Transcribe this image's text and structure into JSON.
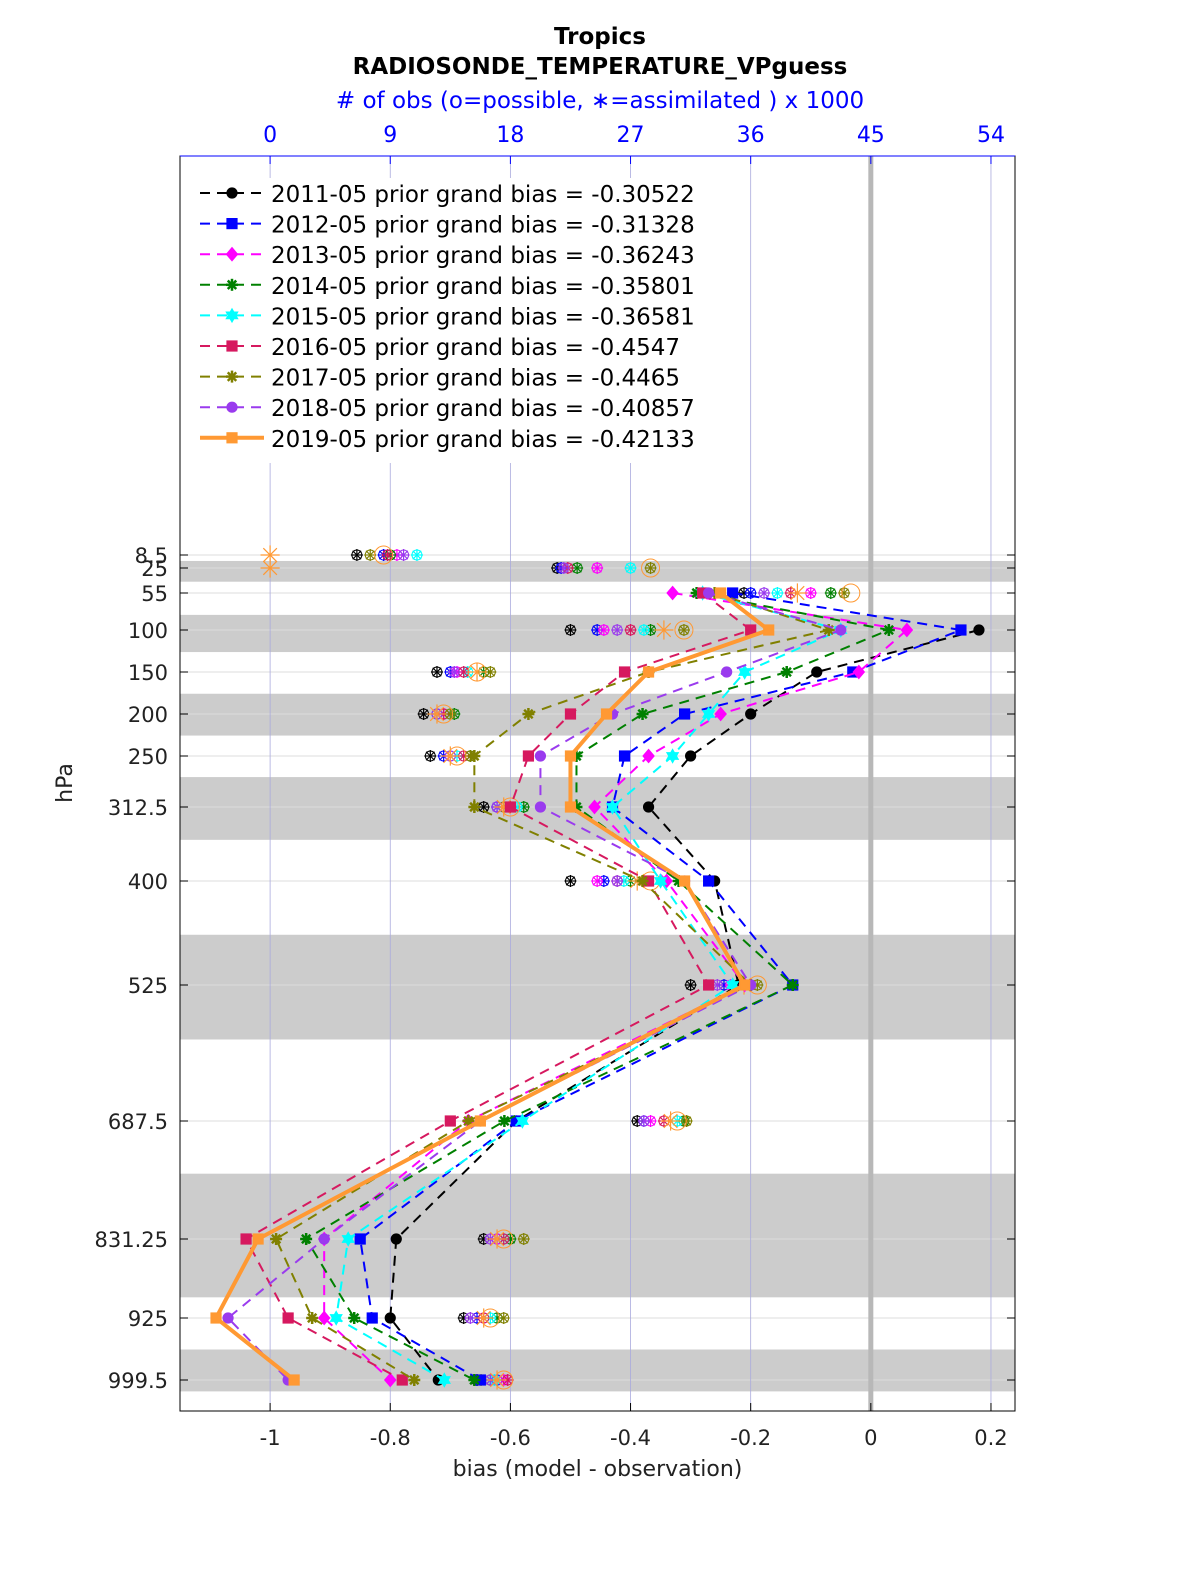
{
  "title": "Tropics",
  "subtitle": "RADIOSONDE_TEMPERATURE_VPguess",
  "top_axis_label": "# of obs (o=possible, ∗=assimilated ) x 1000",
  "colors": {
    "2011-05": "#000000",
    "2012-05": "#0000ff",
    "2013-05": "#ff00ff",
    "2014-05": "#008000",
    "2015-05": "#00ffff",
    "2016-05": "#d6195f",
    "2017-05": "#808000",
    "2018-05": "#9a3bee",
    "2019-05": "#ff9933"
  },
  "chart_data": {
    "type": "line",
    "title": "Tropics",
    "subtitle": "RADIOSONDE_TEMPERATURE_VPguess",
    "xlabel": "bias (model - observation)",
    "ylabel": "hPa",
    "xlim": [
      -1.15,
      0.24
    ],
    "x_ticks": [
      -1,
      -0.8,
      -0.6,
      -0.4,
      -0.2,
      0,
      0.2
    ],
    "x_tick_labels": [
      "-1",
      "-0.8",
      "-0.6",
      "-0.4",
      "-0.2",
      "0",
      "0.2"
    ],
    "top_axis": {
      "label": "# of obs (o=possible, ∗=assimilated ) x 1000",
      "ticks": [
        0,
        9,
        18,
        27,
        36,
        45,
        54
      ],
      "tick_labels": [
        "0",
        "9",
        "18",
        "27",
        "36",
        "45",
        "54"
      ]
    },
    "y_reversed": true,
    "y_levels": [
      8.5,
      25,
      55,
      100,
      150,
      200,
      250,
      312.5,
      400,
      525,
      687.5,
      831.25,
      925,
      999.5
    ],
    "y_tick_labels": [
      "8.5",
      "25",
      "55",
      "100",
      "150",
      "200",
      "250",
      "312.5",
      "400",
      "525",
      "687.5",
      "831.25",
      "925",
      "999.5"
    ],
    "grid": true,
    "legend_position": "top-left",
    "series": [
      {
        "name": "2011-05 prior grand bias = -0.30522",
        "line": "dashed",
        "marker": "circle",
        "levels": [
          100,
          150,
          200,
          250,
          312.5,
          400,
          525,
          687.5,
          831.25,
          925,
          999.5
        ],
        "values": [
          0.18,
          -0.09,
          -0.2,
          -0.3,
          -0.37,
          -0.26,
          -0.22,
          -0.59,
          -0.79,
          -0.8,
          -0.72
        ]
      },
      {
        "name": "2012-05 prior grand bias = -0.31328",
        "line": "dashed",
        "marker": "square",
        "levels": [
          55,
          100,
          150,
          200,
          250,
          312.5,
          400,
          525,
          687.5,
          831.25,
          925,
          999.5
        ],
        "values": [
          -0.23,
          0.15,
          -0.03,
          -0.31,
          -0.41,
          -0.43,
          -0.27,
          -0.13,
          -0.59,
          -0.85,
          -0.83,
          -0.65
        ]
      },
      {
        "name": "2013-05 prior grand bias = -0.36243",
        "line": "dashed",
        "marker": "diamond",
        "levels": [
          55,
          100,
          150,
          200,
          250,
          312.5,
          400,
          525,
          687.5,
          831.25,
          925,
          999.5
        ],
        "values": [
          -0.33,
          0.06,
          -0.02,
          -0.25,
          -0.37,
          -0.46,
          -0.34,
          -0.21,
          -0.67,
          -0.91,
          -0.91,
          -0.8
        ]
      },
      {
        "name": "2014-05 prior grand bias = -0.35801",
        "line": "dashed",
        "marker": "star",
        "levels": [
          55,
          100,
          150,
          200,
          250,
          312.5,
          400,
          525,
          687.5,
          831.25,
          925,
          999.5
        ],
        "values": [
          -0.29,
          0.03,
          -0.14,
          -0.38,
          -0.49,
          -0.49,
          -0.32,
          -0.13,
          -0.61,
          -0.94,
          -0.86,
          -0.66
        ]
      },
      {
        "name": "2015-05 prior grand bias = -0.36581",
        "line": "dashed",
        "marker": "hexagram",
        "levels": [
          55,
          100,
          150,
          200,
          250,
          312.5,
          400,
          525,
          687.5,
          831.25,
          925,
          999.5
        ],
        "values": [
          -0.28,
          -0.05,
          -0.21,
          -0.27,
          -0.33,
          -0.43,
          -0.35,
          -0.23,
          -0.58,
          -0.87,
          -0.89,
          -0.71
        ]
      },
      {
        "name": "2016-05 prior grand bias = -0.4547",
        "line": "dashed",
        "marker": "square",
        "levels": [
          55,
          100,
          150,
          200,
          250,
          312.5,
          400,
          525,
          687.5,
          831.25,
          925,
          999.5
        ],
        "values": [
          -0.28,
          -0.2,
          -0.41,
          -0.5,
          -0.57,
          -0.6,
          -0.37,
          -0.27,
          -0.7,
          -1.04,
          -0.97,
          -0.78
        ]
      },
      {
        "name": "2017-05 prior grand bias = -0.4465",
        "line": "dashed",
        "marker": "star",
        "levels": [
          55,
          100,
          150,
          200,
          250,
          312.5,
          400,
          525,
          687.5,
          831.25,
          925,
          999.5
        ],
        "values": [
          -0.26,
          -0.07,
          -0.37,
          -0.57,
          -0.66,
          -0.66,
          -0.38,
          -0.2,
          -0.67,
          -0.99,
          -0.93,
          -0.76
        ]
      },
      {
        "name": "2018-05 prior grand bias = -0.40857",
        "line": "dashed",
        "marker": "circle",
        "levels": [
          55,
          100,
          150,
          200,
          250,
          312.5,
          400,
          525,
          687.5,
          831.25,
          925,
          999.5
        ],
        "values": [
          -0.27,
          -0.05,
          -0.24,
          -0.43,
          -0.55,
          -0.55,
          -0.31,
          -0.2,
          -0.65,
          -0.91,
          -1.07,
          -0.97
        ]
      },
      {
        "name": "2019-05 prior grand bias = -0.42133",
        "line": "solid",
        "marker": "square",
        "levels": [
          55,
          100,
          150,
          200,
          250,
          312.5,
          400,
          525,
          687.5,
          831.25,
          925,
          999.5
        ],
        "values": [
          -0.25,
          -0.17,
          -0.37,
          -0.44,
          -0.5,
          -0.5,
          -0.31,
          -0.21,
          -0.65,
          -1.02,
          -1.09,
          -0.96
        ]
      }
    ],
    "obs_counts": {
      "unit": "x 1000",
      "levels": [
        8.5,
        25,
        55,
        100,
        150,
        200,
        250,
        312.5,
        400,
        525,
        687.5,
        831.25,
        925,
        999.5
      ],
      "series": [
        {
          "name": "2011-05",
          "possible": [
            6.5,
            21.5,
            35.5,
            22.5,
            12.5,
            11.5,
            12,
            16,
            22.5,
            31.5,
            27.5,
            16,
            14.5,
            15.5
          ],
          "assimilated": [
            6.5,
            21.5,
            35.5,
            22.5,
            12.5,
            11.5,
            12,
            16,
            22.5,
            31.5,
            27.5,
            16,
            14.5,
            15.5
          ]
        },
        {
          "name": "2012-05",
          "possible": [
            8.5,
            21.8,
            36,
            24.5,
            13.5,
            12.5,
            13,
            17,
            25,
            34,
            28,
            17,
            15.5,
            17
          ],
          "assimilated": [
            8.5,
            21.8,
            36,
            24.5,
            13.5,
            12.5,
            13,
            17,
            25,
            34,
            28,
            17,
            15.5,
            17
          ]
        },
        {
          "name": "2013-05",
          "possible": [
            9.5,
            24.5,
            40.5,
            25,
            14,
            13,
            13.5,
            18,
            24.5,
            34.5,
            28.5,
            17,
            16,
            17.5
          ],
          "assimilated": [
            9.5,
            24.5,
            40.5,
            25,
            14,
            13,
            13.5,
            18,
            24.5,
            34.5,
            28.5,
            17,
            16,
            17.5
          ]
        },
        {
          "name": "2014-05",
          "possible": [
            9,
            23,
            42,
            28.5,
            16,
            13.8,
            15,
            19,
            27,
            36,
            31,
            18,
            17,
            16.5
          ],
          "assimilated": [
            9,
            23,
            42,
            28.5,
            16,
            13.8,
            15,
            19,
            27,
            36,
            31,
            18,
            17,
            16.5
          ]
        },
        {
          "name": "2015-05",
          "possible": [
            11,
            27,
            38,
            28,
            14.8,
            13.5,
            14,
            18.5,
            26.5,
            35,
            30.5,
            17.5,
            16.5,
            16.8
          ],
          "assimilated": [
            11,
            27,
            38,
            28,
            14.8,
            13.5,
            14,
            18.5,
            26.5,
            35,
            30.5,
            17.5,
            16.5,
            16.8
          ]
        },
        {
          "name": "2016-05",
          "possible": [
            8.8,
            22.3,
            39,
            27,
            14.5,
            13,
            14.5,
            18,
            26,
            35.5,
            29.5,
            17.5,
            16,
            17.8
          ],
          "assimilated": [
            8.8,
            22.3,
            39,
            27,
            14.5,
            13,
            14.5,
            18,
            26,
            35.5,
            29.5,
            17.5,
            16,
            17.8
          ]
        },
        {
          "name": "2017-05",
          "possible": [
            7.5,
            28.5,
            43,
            31,
            16.5,
            13.5,
            15,
            17.5,
            28,
            36.5,
            31.2,
            19,
            17.5,
            15.8
          ],
          "assimilated": [
            7.5,
            28.5,
            43,
            31,
            16.5,
            13.5,
            15,
            17.5,
            28,
            36.5,
            31.2,
            19,
            17.5,
            15.8
          ]
        },
        {
          "name": "2018-05",
          "possible": [
            10,
            22,
            37,
            26,
            13.8,
            12.5,
            13.5,
            17,
            26,
            33.5,
            28,
            16.5,
            15,
            16.5
          ],
          "assimilated": [
            10,
            22,
            37,
            26,
            13.8,
            12.5,
            13.5,
            17,
            26,
            33.5,
            28,
            16.5,
            15,
            16.5
          ]
        },
        {
          "name": "2019-05",
          "possible": [
            8.5,
            28.5,
            43.5,
            31,
            15.5,
            13,
            14,
            18,
            28.5,
            36.5,
            30.5,
            17.5,
            16.5,
            17.5
          ],
          "assimilated": [
            0,
            0,
            39.5,
            29.5,
            15.5,
            12.5,
            13.5,
            17.5,
            27.5,
            35.5,
            30,
            17,
            16,
            17
          ]
        }
      ]
    },
    "gray_bands": [
      [
        15,
        40
      ],
      [
        80,
        125
      ],
      [
        175,
        225
      ],
      [
        275,
        350
      ],
      [
        462.5,
        587.5
      ],
      [
        750,
        900
      ],
      [
        962.5,
        1013.5
      ]
    ],
    "zero_line": 0
  }
}
